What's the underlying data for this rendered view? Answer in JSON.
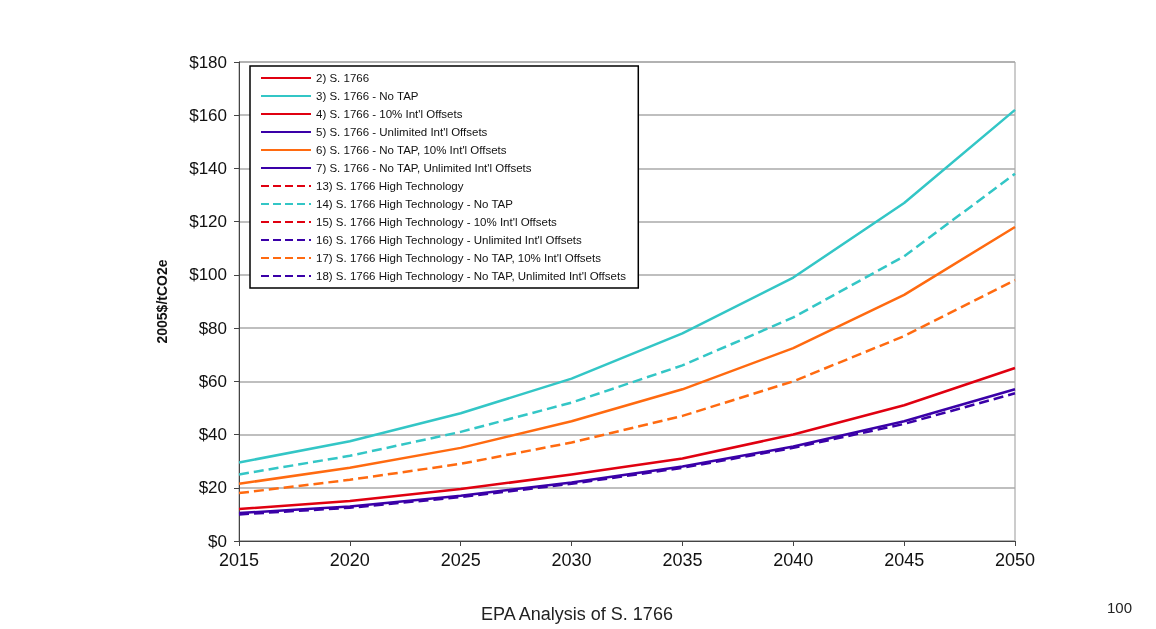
{
  "chart_data": {
    "type": "line",
    "ylabel": "2005$/tCO2e",
    "annotations": [
      "EPA Analysis of S. 1766",
      "100"
    ],
    "x": [
      2015,
      2020,
      2025,
      2030,
      2035,
      2040,
      2045,
      2050
    ],
    "xlim": [
      2015,
      2050
    ],
    "xticks": [
      2015,
      2020,
      2025,
      2030,
      2035,
      2040,
      2045,
      2050
    ],
    "ylim": [
      0,
      180
    ],
    "yticks": [
      {
        "value": 0,
        "label": "$0"
      },
      {
        "value": 20,
        "label": "$20"
      },
      {
        "value": 40,
        "label": "$40"
      },
      {
        "value": 60,
        "label": "$60"
      },
      {
        "value": 80,
        "label": "$80"
      },
      {
        "value": 100,
        "label": "$100"
      },
      {
        "value": 120,
        "label": "$120"
      },
      {
        "value": 140,
        "label": "$140"
      },
      {
        "value": 160,
        "label": "$160"
      },
      {
        "value": 180,
        "label": "$180"
      }
    ],
    "grid": "y",
    "legend": "top left",
    "marker": "none",
    "series": [
      {
        "name": "2) S. 1766",
        "color": "#e00010",
        "line_style": "solid",
        "values": [
          12,
          15,
          19.5,
          25,
          31,
          40,
          51,
          65
        ]
      },
      {
        "name": "3) S. 1766 - No TAP",
        "color": "#33c6c6",
        "line_style": "solid",
        "values": [
          29.5,
          37.5,
          48,
          61,
          78,
          99,
          127,
          162
        ]
      },
      {
        "name": "4) S. 1766 - 10% Int'l Offsets",
        "color": "#e00010",
        "line_style": "solid",
        "values": [
          null,
          null,
          null,
          null,
          null,
          null,
          null,
          null
        ]
      },
      {
        "name": "5) S. 1766 - Unlimited Int'l Offsets",
        "color": "#3a00a8",
        "line_style": "solid",
        "values": [
          10.5,
          13,
          17,
          22,
          28,
          35.5,
          45,
          57
        ]
      },
      {
        "name": "6) S. 1766 - No TAP, 10% Int'l Offsets",
        "color": "#ff6a10",
        "line_style": "solid",
        "values": [
          21.5,
          27.5,
          35,
          45,
          57,
          72.5,
          92.5,
          118
        ]
      },
      {
        "name": "7) S. 1766 - No TAP, Unlimited Int'l Offsets",
        "color": "#3a00a8",
        "line_style": "solid",
        "values": [
          null,
          null,
          null,
          null,
          null,
          null,
          null,
          null
        ]
      },
      {
        "name": "13) S. 1766 High Technology",
        "color": "#e00010",
        "line_style": "dashed",
        "values": [
          null,
          null,
          null,
          null,
          null,
          null,
          null,
          null
        ]
      },
      {
        "name": "14) S. 1766 High Technology - No TAP",
        "color": "#33c6c6",
        "line_style": "dashed",
        "values": [
          25,
          32,
          41,
          52,
          66,
          84,
          107,
          138
        ]
      },
      {
        "name": "15) S. 1766 High Technology - 10% Int'l Offsets",
        "color": "#e00010",
        "line_style": "dashed",
        "values": [
          null,
          null,
          null,
          null,
          null,
          null,
          null,
          null
        ]
      },
      {
        "name": "16) S. 1766 High Technology - Unlimited Int'l Offsets",
        "color": "#3a00a8",
        "line_style": "dashed",
        "values": [
          10,
          12.5,
          16.5,
          21.5,
          27.5,
          35,
          44,
          55.5
        ]
      },
      {
        "name": "17) S. 1766 High Technology - No TAP, 10% Int'l Offsets",
        "color": "#ff6a10",
        "line_style": "dashed",
        "values": [
          18,
          23,
          29,
          37,
          47,
          60,
          77,
          98
        ]
      },
      {
        "name": "18) S. 1766 High Technology - No TAP, Unlimited Int'l Offsets",
        "color": "#3a00a8",
        "line_style": "dashed",
        "values": [
          null,
          null,
          null,
          null,
          null,
          null,
          null,
          null
        ]
      }
    ]
  }
}
